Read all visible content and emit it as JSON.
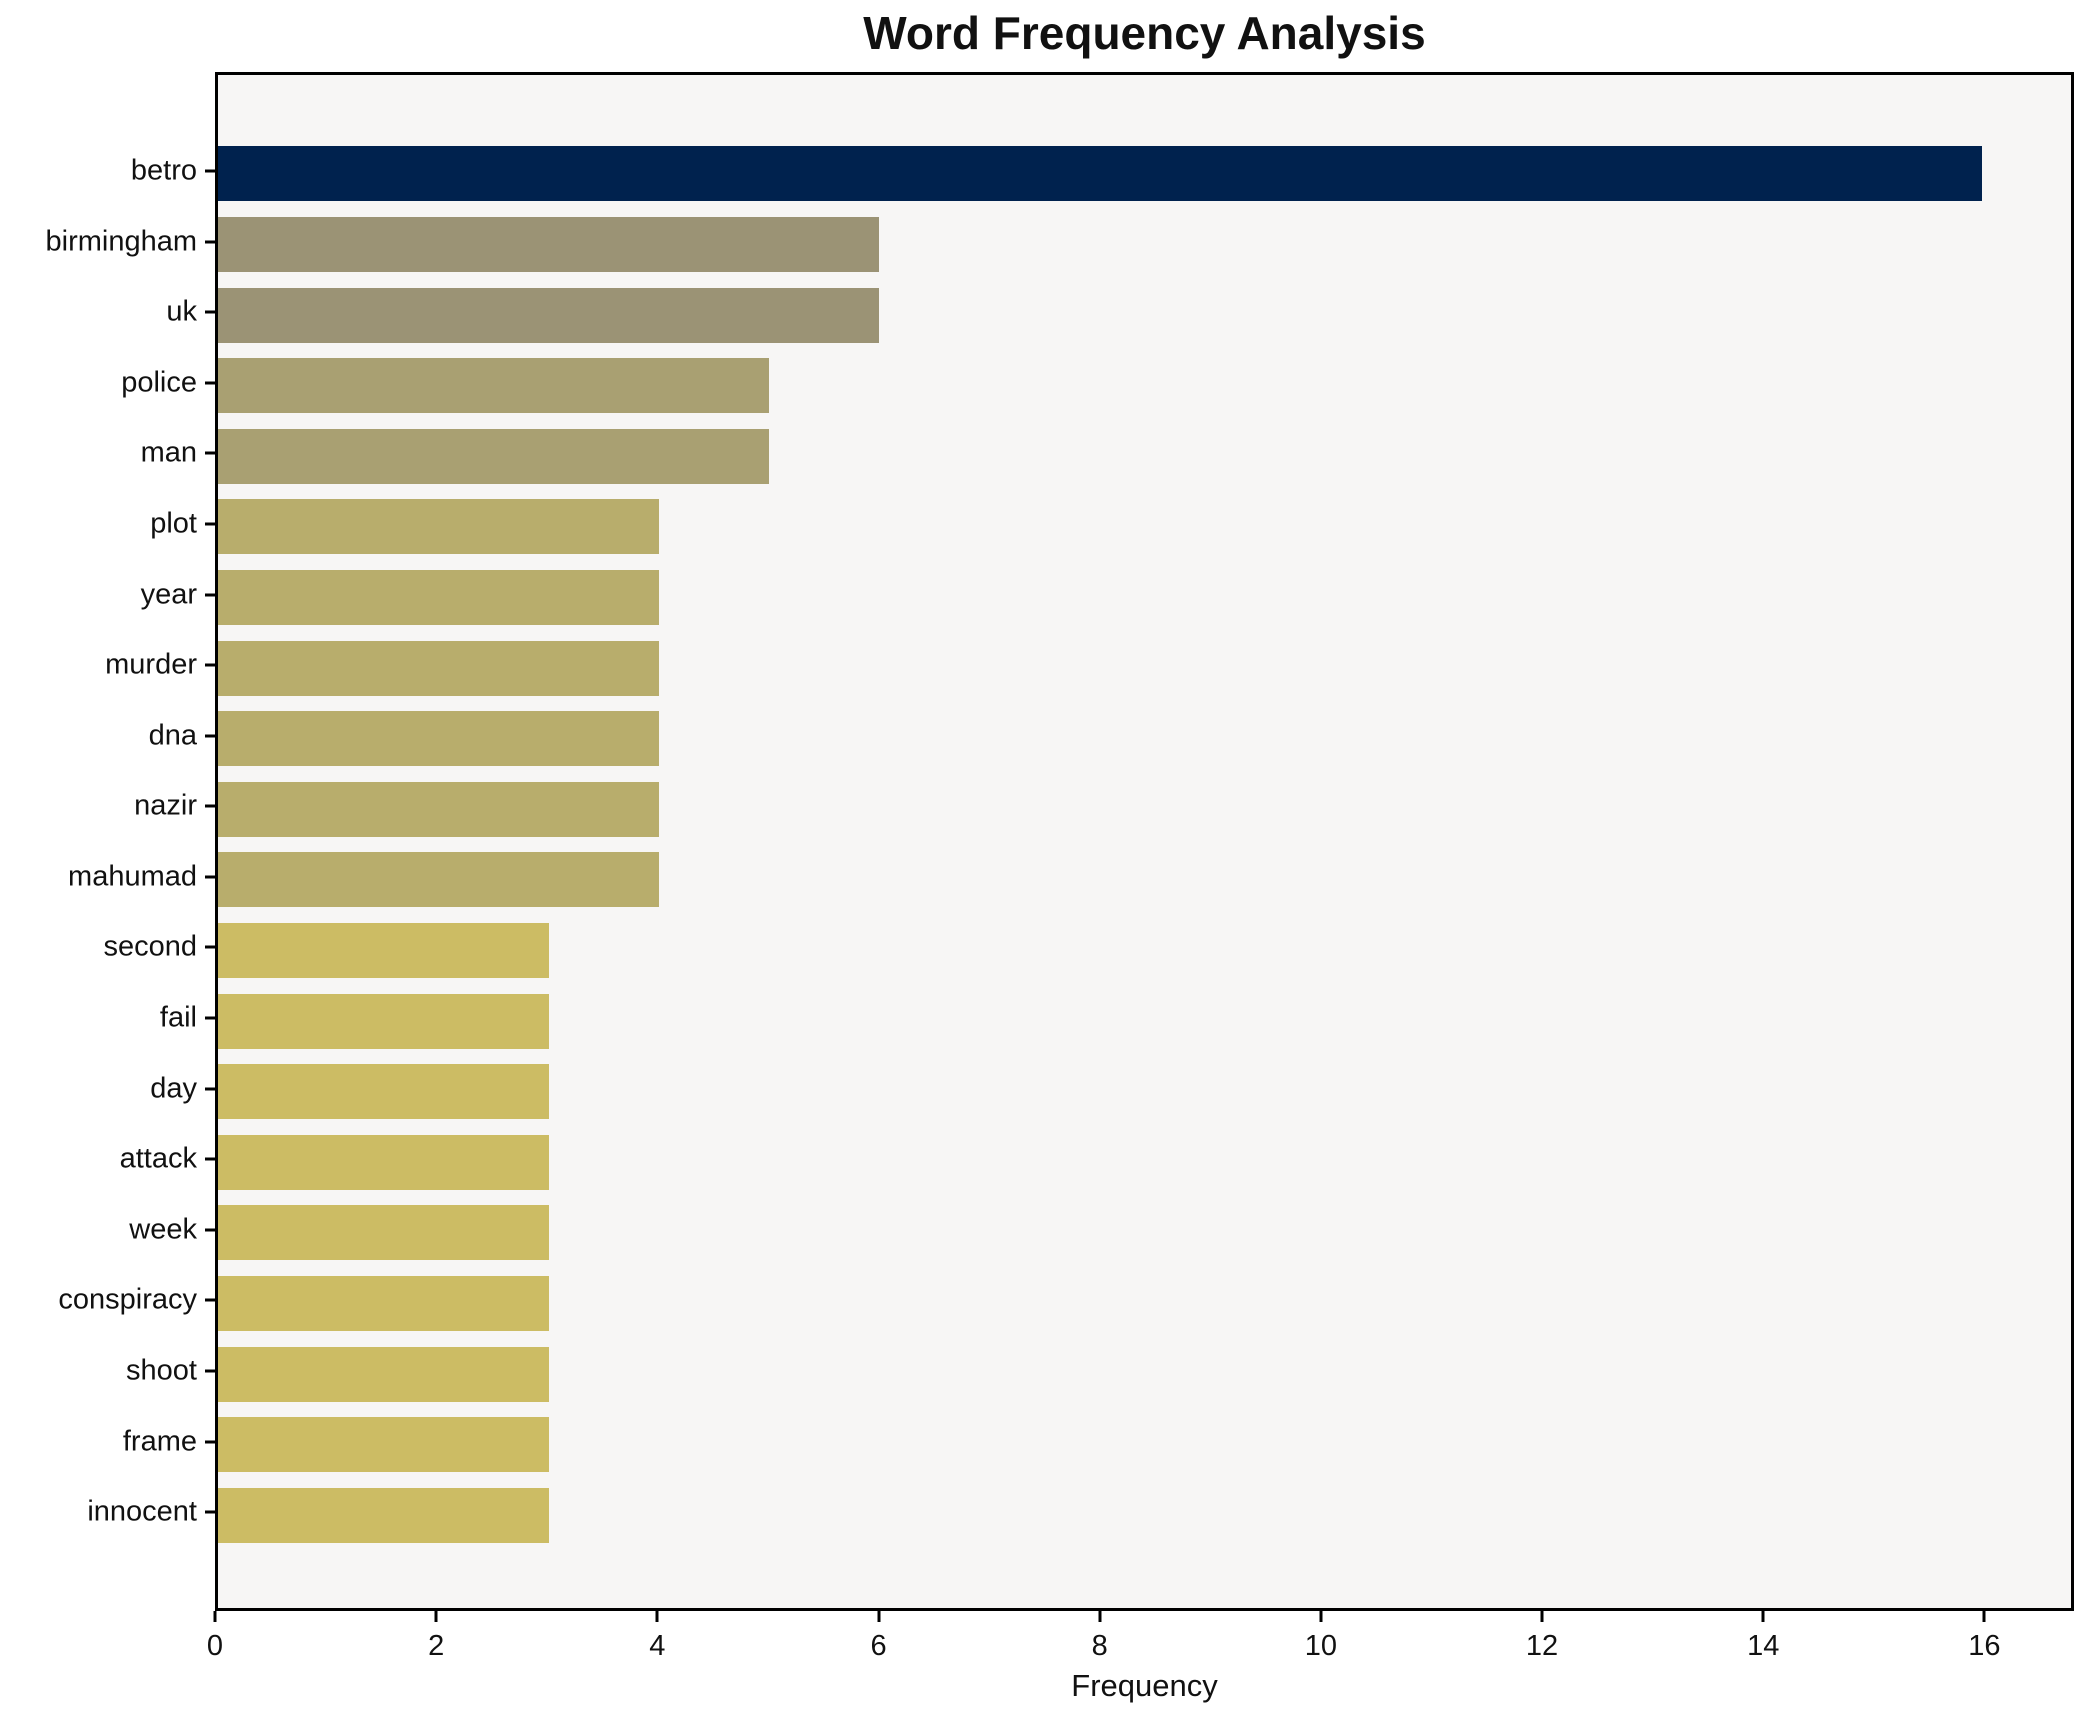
{
  "chart_data": {
    "type": "bar",
    "orientation": "horizontal",
    "title": "Word Frequency Analysis",
    "xlabel": "Frequency",
    "ylabel": "",
    "categories": [
      "betro",
      "birmingham",
      "uk",
      "police",
      "man",
      "plot",
      "year",
      "murder",
      "dna",
      "nazir",
      "mahumad",
      "second",
      "fail",
      "day",
      "attack",
      "week",
      "conspiracy",
      "shoot",
      "frame",
      "innocent"
    ],
    "values": [
      16,
      6,
      6,
      5,
      5,
      4,
      4,
      4,
      4,
      4,
      4,
      3,
      3,
      3,
      3,
      3,
      3,
      3,
      3,
      3
    ],
    "bar_colors": [
      "#00224e",
      "#9b9375",
      "#9b9375",
      "#a9a072",
      "#a9a072",
      "#b8ad6c",
      "#b8ad6c",
      "#b8ad6c",
      "#b8ad6c",
      "#b8ad6c",
      "#b8ad6c",
      "#ccbc64",
      "#ccbc64",
      "#ccbc64",
      "#ccbc64",
      "#ccbc64",
      "#ccbc64",
      "#ccbc64",
      "#ccbc64",
      "#ccbc64"
    ],
    "xlim": [
      0,
      16.81
    ],
    "xticks": [
      0,
      2,
      4,
      6,
      8,
      10,
      12,
      14,
      16
    ],
    "grid": false,
    "legend": null,
    "colors": {
      "plot_background": "#f7f6f5",
      "page_background": "#ffffff",
      "spine": "#000000",
      "text": "#111111"
    }
  }
}
